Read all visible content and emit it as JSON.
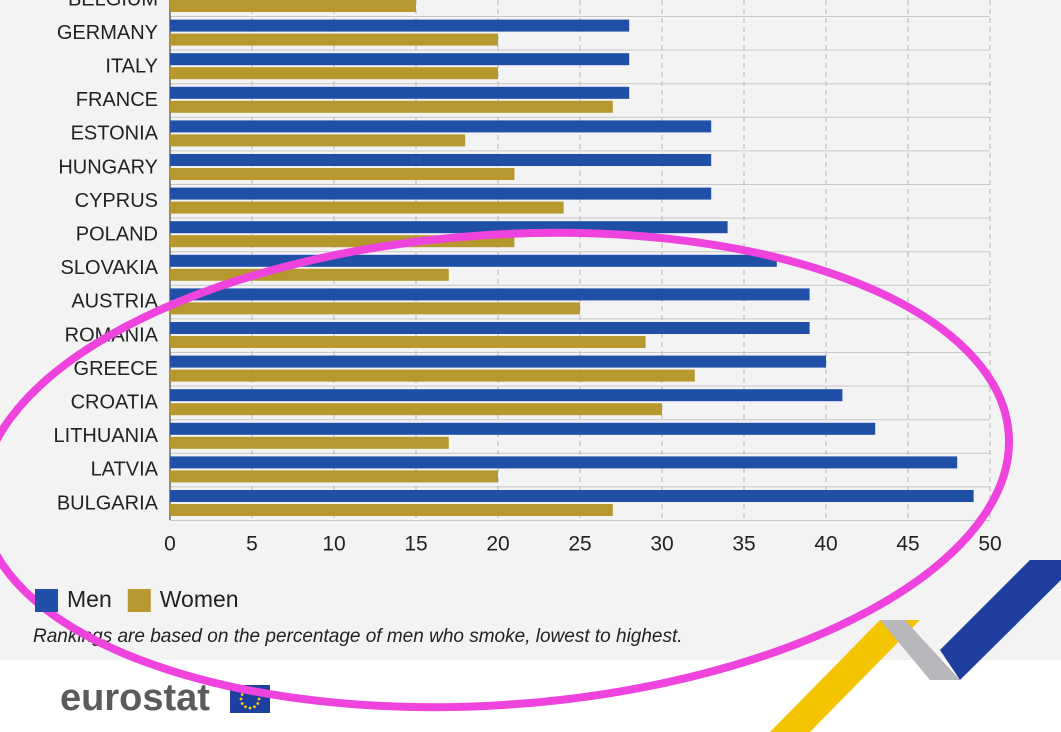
{
  "chart_data": {
    "type": "bar",
    "orientation": "horizontal",
    "categories": [
      "BELGIUM",
      "GERMANY",
      "ITALY",
      "FRANCE",
      "ESTONIA",
      "HUNGARY",
      "CYPRUS",
      "POLAND",
      "SLOVAKIA",
      "AUSTRIA",
      "ROMANIA",
      "GREECE",
      "CROATIA",
      "LITHUANIA",
      "LATVIA",
      "BULGARIA"
    ],
    "series": [
      {
        "name": "Men",
        "color": "#1f4fa6",
        "values": [
          null,
          28,
          28,
          28,
          33,
          33,
          33,
          34,
          37,
          39,
          39,
          40,
          41,
          43,
          48,
          49
        ]
      },
      {
        "name": "Women",
        "color": "#b7982f",
        "values": [
          15,
          20,
          20,
          27,
          18,
          21,
          24,
          21,
          17,
          25,
          29,
          32,
          30,
          17,
          20,
          27
        ]
      }
    ],
    "xlim": [
      0,
      50
    ],
    "xticks": [
      0,
      5,
      10,
      15,
      20,
      25,
      30,
      35,
      40,
      45,
      50
    ],
    "grid": true,
    "note": "Rankings are based on the percentage of men who smoke, lowest to highest."
  },
  "logo": "eurostat"
}
